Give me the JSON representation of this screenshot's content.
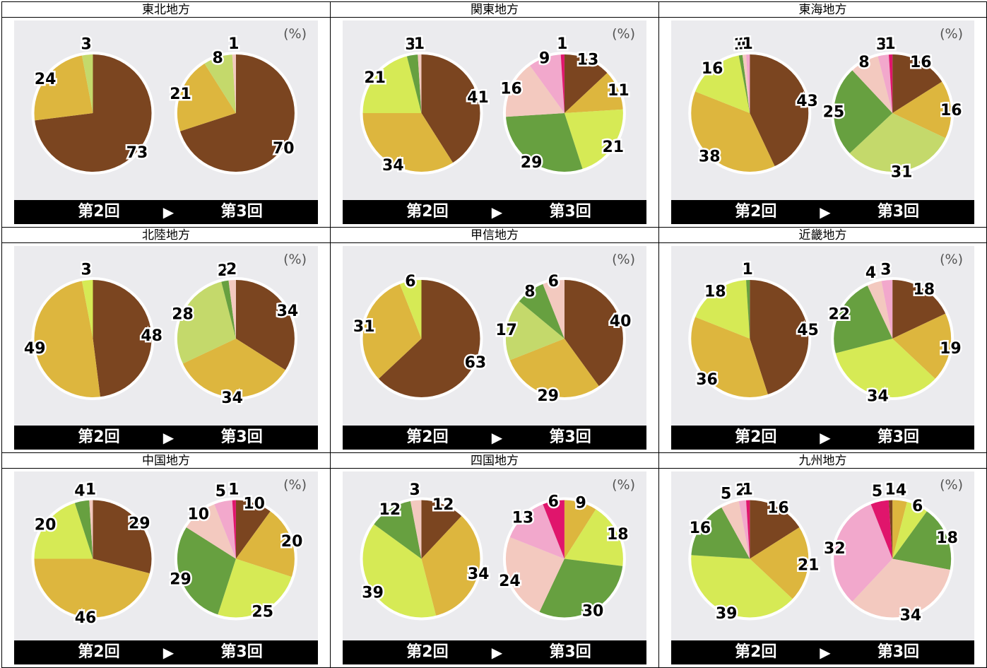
{
  "unit_label": "(%)",
  "round_labels": {
    "before": "第2回",
    "arrow": "▶",
    "after": "第3回"
  },
  "colors": {
    "brown": "#7b4520",
    "mustard": "#ddb63e",
    "lime": "#d6ea55",
    "green": "#67a040",
    "pale_green": "#c4d96b",
    "peach": "#f3c9bf",
    "pink": "#f2a8cc",
    "magenta": "#e0156c"
  },
  "chart_data": [
    {
      "type": "pie",
      "title": "東北地方",
      "pies": [
        {
          "label": "第2回",
          "slices": [
            {
              "value": 73,
              "color": "brown"
            },
            {
              "value": 24,
              "color": "mustard"
            },
            {
              "value": 3,
              "color": "pale_green"
            }
          ]
        },
        {
          "label": "第3回",
          "slices": [
            {
              "value": 70,
              "color": "brown"
            },
            {
              "value": 21,
              "color": "mustard"
            },
            {
              "value": 8,
              "color": "pale_green"
            },
            {
              "value": 1,
              "color": "peach"
            }
          ]
        }
      ]
    },
    {
      "type": "pie",
      "title": "関東地方",
      "pies": [
        {
          "label": "第2回",
          "slices": [
            {
              "value": 41,
              "color": "brown"
            },
            {
              "value": 34,
              "color": "mustard"
            },
            {
              "value": 21,
              "color": "lime"
            },
            {
              "value": 3,
              "color": "green"
            },
            {
              "value": 1,
              "color": "peach"
            }
          ]
        },
        {
          "label": "第3回",
          "slices": [
            {
              "value": 13,
              "color": "brown"
            },
            {
              "value": 11,
              "color": "mustard"
            },
            {
              "value": 21,
              "color": "lime"
            },
            {
              "value": 29,
              "color": "green"
            },
            {
              "value": 16,
              "color": "peach"
            },
            {
              "value": 9,
              "color": "pink"
            },
            {
              "value": 1,
              "color": "magenta"
            }
          ]
        }
      ]
    },
    {
      "type": "pie",
      "title": "東海地方",
      "pies": [
        {
          "label": "第2回",
          "slices": [
            {
              "value": 43,
              "color": "brown"
            },
            {
              "value": 38,
              "color": "mustard"
            },
            {
              "value": 16,
              "color": "lime"
            },
            {
              "value": 1,
              "color": "green"
            },
            {
              "value": 1,
              "color": "peach"
            },
            {
              "value": 1,
              "color": "pink"
            }
          ]
        },
        {
          "label": "第3回",
          "slices": [
            {
              "value": 16,
              "color": "brown"
            },
            {
              "value": 16,
              "color": "mustard"
            },
            {
              "value": 31,
              "color": "pale_green"
            },
            {
              "value": 25,
              "color": "green"
            },
            {
              "value": 8,
              "color": "peach"
            },
            {
              "value": 3,
              "color": "pink"
            },
            {
              "value": 1,
              "color": "magenta"
            }
          ]
        }
      ]
    },
    {
      "type": "pie",
      "title": "北陸地方",
      "pies": [
        {
          "label": "第2回",
          "slices": [
            {
              "value": 48,
              "color": "brown"
            },
            {
              "value": 49,
              "color": "mustard"
            },
            {
              "value": 3,
              "color": "lime"
            }
          ]
        },
        {
          "label": "第3回",
          "slices": [
            {
              "value": 34,
              "color": "brown"
            },
            {
              "value": 34,
              "color": "mustard"
            },
            {
              "value": 28,
              "color": "pale_green"
            },
            {
              "value": 2,
              "color": "green"
            },
            {
              "value": 2,
              "color": "peach"
            }
          ]
        }
      ]
    },
    {
      "type": "pie",
      "title": "甲信地方",
      "pies": [
        {
          "label": "第2回",
          "slices": [
            {
              "value": 63,
              "color": "brown"
            },
            {
              "value": 31,
              "color": "mustard"
            },
            {
              "value": 6,
              "color": "lime"
            }
          ]
        },
        {
          "label": "第3回",
          "slices": [
            {
              "value": 40,
              "color": "brown"
            },
            {
              "value": 29,
              "color": "mustard"
            },
            {
              "value": 17,
              "color": "pale_green"
            },
            {
              "value": 8,
              "color": "green"
            },
            {
              "value": 6,
              "color": "peach"
            }
          ]
        }
      ]
    },
    {
      "type": "pie",
      "title": "近畿地方",
      "pies": [
        {
          "label": "第2回",
          "slices": [
            {
              "value": 45,
              "color": "brown"
            },
            {
              "value": 36,
              "color": "mustard"
            },
            {
              "value": 18,
              "color": "lime"
            },
            {
              "value": 1,
              "color": "green"
            }
          ]
        },
        {
          "label": "第3回",
          "slices": [
            {
              "value": 18,
              "color": "brown"
            },
            {
              "value": 19,
              "color": "mustard"
            },
            {
              "value": 34,
              "color": "lime"
            },
            {
              "value": 22,
              "color": "green"
            },
            {
              "value": 4,
              "color": "peach"
            },
            {
              "value": 3,
              "color": "pink"
            }
          ]
        }
      ]
    },
    {
      "type": "pie",
      "title": "中国地方",
      "pies": [
        {
          "label": "第2回",
          "slices": [
            {
              "value": 29,
              "color": "brown"
            },
            {
              "value": 46,
              "color": "mustard"
            },
            {
              "value": 20,
              "color": "lime"
            },
            {
              "value": 4,
              "color": "green"
            },
            {
              "value": 1,
              "color": "peach"
            }
          ]
        },
        {
          "label": "第3回",
          "slices": [
            {
              "value": 10,
              "color": "brown"
            },
            {
              "value": 20,
              "color": "mustard"
            },
            {
              "value": 25,
              "color": "lime"
            },
            {
              "value": 29,
              "color": "green"
            },
            {
              "value": 10,
              "color": "peach"
            },
            {
              "value": 5,
              "color": "pink"
            },
            {
              "value": 1,
              "color": "magenta"
            }
          ]
        }
      ]
    },
    {
      "type": "pie",
      "title": "四国地方",
      "pies": [
        {
          "label": "第2回",
          "slices": [
            {
              "value": 12,
              "color": "brown"
            },
            {
              "value": 34,
              "color": "mustard"
            },
            {
              "value": 39,
              "color": "lime"
            },
            {
              "value": 12,
              "color": "green"
            },
            {
              "value": 3,
              "color": "peach"
            }
          ]
        },
        {
          "label": "第3回",
          "slices": [
            {
              "value": 9,
              "color": "mustard"
            },
            {
              "value": 18,
              "color": "lime"
            },
            {
              "value": 30,
              "color": "green"
            },
            {
              "value": 24,
              "color": "peach"
            },
            {
              "value": 13,
              "color": "pink"
            },
            {
              "value": 6,
              "color": "magenta"
            }
          ]
        }
      ]
    },
    {
      "type": "pie",
      "title": "九州地方",
      "pies": [
        {
          "label": "第2回",
          "slices": [
            {
              "value": 16,
              "color": "brown"
            },
            {
              "value": 21,
              "color": "mustard"
            },
            {
              "value": 39,
              "color": "lime"
            },
            {
              "value": 16,
              "color": "green"
            },
            {
              "value": 5,
              "color": "peach"
            },
            {
              "value": 2,
              "color": "pink"
            },
            {
              "value": 1,
              "color": "magenta"
            }
          ]
        },
        {
          "label": "第3回",
          "slices": [
            {
              "value": 4,
              "color": "mustard"
            },
            {
              "value": 6,
              "color": "lime"
            },
            {
              "value": 18,
              "color": "green"
            },
            {
              "value": 34,
              "color": "peach"
            },
            {
              "value": 32,
              "color": "pink"
            },
            {
              "value": 5,
              "color": "magenta"
            },
            {
              "value": 1,
              "color": "brown"
            }
          ]
        }
      ]
    }
  ]
}
